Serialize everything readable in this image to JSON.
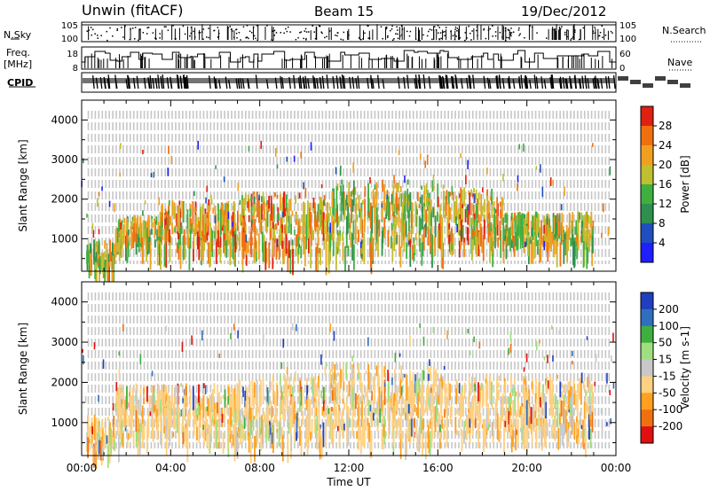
{
  "header": {
    "radar": "Unwin (fitACF)",
    "beam": "Beam 15",
    "date": "19/Dec/2012"
  },
  "strip_labels": {
    "nsky": "N.Sky",
    "freq_line1": "Freq.",
    "freq_line2": "[MHz]",
    "cpid": "CPID",
    "nsearch": "N.Search",
    "nave": "Nave",
    "nsky_ticks": [
      "10^5",
      "10^0"
    ],
    "freq_ticks": [
      "18",
      "8"
    ],
    "nsearch_ticks": [
      "10^5",
      "10^0"
    ],
    "nave_ticks": [
      "60",
      "0"
    ]
  },
  "chart_data": [
    {
      "type": "heatmap",
      "panel": "power",
      "ylabel": "Slant Range [km]",
      "ylim": [
        180,
        4500
      ],
      "yticks": [
        1000,
        2000,
        3000,
        4000
      ],
      "xlim": [
        0,
        24
      ],
      "colorbar": {
        "label": "Power [dB]",
        "ticks": [
          "4",
          "8",
          "12",
          "16",
          "20",
          "24",
          "28"
        ],
        "colors": [
          "#1f1fff",
          "#1f4fbf",
          "#2f8f4f",
          "#3faf3f",
          "#bfbf2f",
          "#f0a020",
          "#f07010",
          "#e02010"
        ]
      },
      "scatter_bands": [
        {
          "t0": 0.2,
          "t1": 1.5,
          "r0": 400,
          "r1": 1000,
          "level": 4
        },
        {
          "t0": 1.5,
          "t1": 3.5,
          "r0": 900,
          "r1": 1600,
          "level": 4
        },
        {
          "t0": 3.5,
          "t1": 7.0,
          "r0": 800,
          "r1": 2000,
          "level": 5
        },
        {
          "t0": 7.0,
          "t1": 11.0,
          "r0": 700,
          "r1": 2200,
          "level": 5
        },
        {
          "t0": 11.0,
          "t1": 16.0,
          "r0": 800,
          "r1": 2500,
          "level": 4
        },
        {
          "t0": 16.0,
          "t1": 19.0,
          "r0": 900,
          "r1": 2300,
          "level": 5
        },
        {
          "t0": 19.0,
          "t1": 23.0,
          "r0": 900,
          "r1": 1700,
          "level": 4
        }
      ]
    },
    {
      "type": "heatmap",
      "panel": "velocity",
      "ylabel": "Slant Range [km]",
      "ylim": [
        180,
        4500
      ],
      "yticks": [
        1000,
        2000,
        3000,
        4000
      ],
      "xlim": [
        0,
        24
      ],
      "xlabel": "Time UT",
      "xticks": [
        "00:00",
        "04:00",
        "08:00",
        "12:00",
        "16:00",
        "20:00",
        "00:00"
      ],
      "colorbar": {
        "label": "Velocity [m s^-1]",
        "ticks": [
          "200",
          "100",
          "50",
          "15",
          "-15",
          "-50",
          "-100",
          "-200"
        ],
        "colors": [
          "#1f3fbf",
          "#2f6fbf",
          "#3faf3f",
          "#9fdf7f",
          "#c8c8c8",
          "#ffd080",
          "#ffa020",
          "#f07010",
          "#e01010"
        ]
      },
      "scatter_bands": [
        {
          "t0": 0.2,
          "t1": 1.5,
          "r0": 400,
          "r1": 1200
        },
        {
          "t0": 1.5,
          "t1": 7.0,
          "r0": 700,
          "r1": 2000
        },
        {
          "t0": 7.0,
          "t1": 11.0,
          "r0": 600,
          "r1": 2200
        },
        {
          "t0": 11.0,
          "t1": 16.0,
          "r0": 700,
          "r1": 2500
        },
        {
          "t0": 16.0,
          "t1": 23.0,
          "r0": 800,
          "r1": 2200
        }
      ]
    }
  ]
}
